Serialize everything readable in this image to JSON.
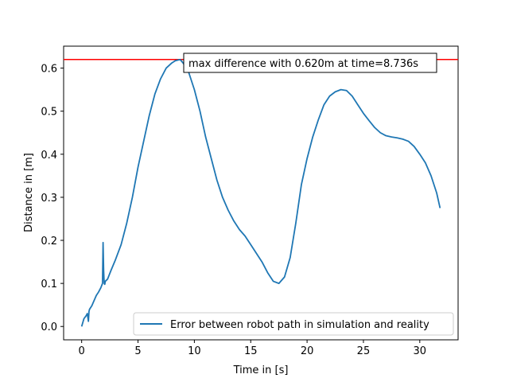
{
  "chart_data": {
    "type": "line",
    "xlabel": "Time in [s]",
    "ylabel": "Distance in [m]",
    "xlim": [
      -1.6,
      33.4
    ],
    "ylim": [
      -0.031,
      0.651
    ],
    "xticks": [
      0,
      5,
      10,
      15,
      20,
      25,
      30
    ],
    "yticks": [
      0.0,
      0.1,
      0.2,
      0.3,
      0.4,
      0.5,
      0.6
    ],
    "grid": false,
    "legend_position": "lower-right",
    "series": [
      {
        "name": "Error between robot path in simulation and reality",
        "color": "#1f77b4",
        "x": [
          0.0,
          0.2,
          0.4,
          0.5,
          0.6,
          0.65,
          0.7,
          0.9,
          1.1,
          1.3,
          1.5,
          1.7,
          1.85,
          1.9,
          1.95,
          2.0,
          2.05,
          2.1,
          2.3,
          2.6,
          3.0,
          3.5,
          4.0,
          4.5,
          5.0,
          5.5,
          6.0,
          6.5,
          7.0,
          7.5,
          8.0,
          8.3,
          8.736,
          9.0,
          9.5,
          10.0,
          10.5,
          11.0,
          11.5,
          12.0,
          12.5,
          13.0,
          13.5,
          14.0,
          14.5,
          15.0,
          15.5,
          16.0,
          16.5,
          17.0,
          17.5,
          18.0,
          18.5,
          19.0,
          19.5,
          20.0,
          20.5,
          21.0,
          21.5,
          22.0,
          22.5,
          23.0,
          23.5,
          24.0,
          24.5,
          25.0,
          25.5,
          26.0,
          26.5,
          27.0,
          27.5,
          28.0,
          28.5,
          29.0,
          29.5,
          30.0,
          30.5,
          31.0,
          31.5,
          31.8
        ],
        "y": [
          0.0,
          0.018,
          0.025,
          0.03,
          0.012,
          0.035,
          0.04,
          0.048,
          0.06,
          0.072,
          0.08,
          0.09,
          0.1,
          0.195,
          0.13,
          0.1,
          0.098,
          0.105,
          0.11,
          0.13,
          0.155,
          0.19,
          0.24,
          0.3,
          0.37,
          0.43,
          0.49,
          0.54,
          0.575,
          0.6,
          0.612,
          0.617,
          0.62,
          0.612,
          0.59,
          0.55,
          0.5,
          0.44,
          0.39,
          0.34,
          0.3,
          0.27,
          0.245,
          0.225,
          0.21,
          0.19,
          0.17,
          0.15,
          0.125,
          0.105,
          0.1,
          0.115,
          0.16,
          0.24,
          0.33,
          0.39,
          0.44,
          0.48,
          0.515,
          0.535,
          0.545,
          0.55,
          0.548,
          0.535,
          0.515,
          0.495,
          0.478,
          0.462,
          0.45,
          0.443,
          0.44,
          0.438,
          0.435,
          0.43,
          0.418,
          0.4,
          0.38,
          0.35,
          0.31,
          0.275
        ]
      }
    ],
    "reference_line": {
      "y": 0.62,
      "color": "#ff0000"
    },
    "annotation": "max difference with 0.620m at time=8.736s"
  }
}
